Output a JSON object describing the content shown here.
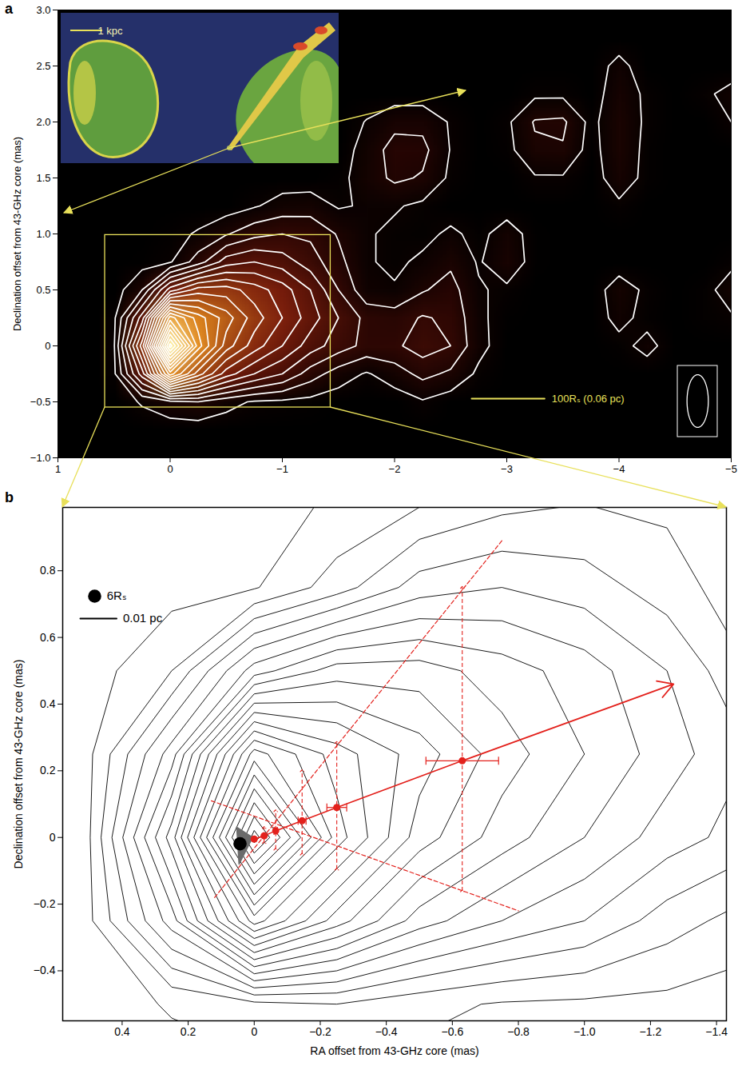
{
  "chart_data": [
    {
      "type": "contour",
      "panel_label": "a",
      "ylabel": "Declination offset from 43-GHz core (mas)",
      "xlim": [
        1,
        -5
      ],
      "ylim": [
        -1,
        3
      ],
      "xticks": [
        1,
        0,
        {
          "value": -1,
          "label": "−1"
        },
        {
          "value": -2,
          "label": "−2"
        },
        {
          "value": -3,
          "label": "−3"
        },
        {
          "value": -4,
          "label": "−4"
        },
        {
          "value": -5,
          "label": "−5"
        }
      ],
      "yticks": [
        {
          "value": -1,
          "label": "−1.0"
        },
        {
          "value": -0.5,
          "label": "−0.5"
        },
        0,
        0.5,
        {
          "value": 1,
          "label": "1.0"
        },
        1.5,
        {
          "value": 2,
          "label": "2.0"
        },
        2.5,
        {
          "value": 3,
          "label": "3.0"
        }
      ],
      "color": "#ffffff",
      "inset": {
        "label": "1 kpc"
      },
      "scale_bar": {
        "label": "100Rₛ (0.06 pc)",
        "length": 0.65
      },
      "beam": {
        "major": 0.47,
        "minor": 0.19
      }
    },
    {
      "type": "contour",
      "panel_label": "b",
      "xlabel": "RA offset from 43-GHz core (mas)",
      "ylabel": "Declination offset from 43-GHz core (mas)",
      "xlim": [
        0.58,
        -1.43
      ],
      "ylim": [
        -0.55,
        0.99
      ],
      "xticks": [
        0.4,
        0.2,
        0,
        {
          "value": -0.2,
          "label": "−0.2"
        },
        {
          "value": -0.4,
          "label": "−0.4"
        },
        {
          "value": -0.6,
          "label": "−0.6"
        },
        {
          "value": -0.8,
          "label": "−0.8"
        },
        {
          "value": -1,
          "label": "−1.0"
        },
        {
          "value": -1.2,
          "label": "−1.2"
        },
        {
          "value": -1.4,
          "label": "−1.4"
        }
      ],
      "yticks": [
        {
          "value": -0.4,
          "label": "−0.4"
        },
        {
          "value": -0.2,
          "label": "−0.2"
        },
        0,
        0.2,
        0.4,
        0.6,
        0.8
      ],
      "color": "#000000",
      "legend": "upper left",
      "legend_items": [
        {
          "label": "6Rₛ",
          "marker": "circle"
        },
        {
          "label": "0.01 pc",
          "marker": "line",
          "length": 0.11
        }
      ],
      "jet_axis": {
        "color": "#e3211c",
        "x": [
          0,
          -0.03,
          -0.065,
          -0.145,
          -0.25,
          -0.63
        ],
        "y": [
          -0.005,
          0.005,
          0.02,
          0.05,
          0.09,
          0.23
        ],
        "x_err": [
          0,
          0,
          0.005,
          0.012,
          0.03,
          0.11
        ],
        "arrow_to": {
          "x": -1.27,
          "y": 0.46
        }
      },
      "jet_width": {
        "color": "#e3211c",
        "line_style": "dashed",
        "x": [
          -0.03,
          -0.065,
          -0.145,
          -0.25,
          -0.63
        ],
        "top": [
          0.03,
          0.08,
          0.2,
          0.285,
          0.75
        ],
        "bottom": [
          -0.015,
          -0.035,
          -0.05,
          -0.095,
          -0.16
        ]
      },
      "envelope": [
        {
          "color": "#e3211c",
          "line_style": "dashed",
          "x": [
            0.12,
            -0.75
          ],
          "y": [
            -0.18,
            0.89
          ]
        },
        {
          "color": "#e3211c",
          "line_style": "dashed",
          "x": [
            0.13,
            -0.8
          ],
          "y": [
            0.11,
            -0.22
          ]
        }
      ],
      "black_hole": {
        "x": 0.043,
        "y": -0.019,
        "diameter": 0.04,
        "color": "#000000",
        "wedge": {
          "color": "#6b6b6b",
          "x": [
            0.053,
            0.005,
            0.046
          ],
          "y": [
            0.031,
            0.0,
            -0.08
          ]
        }
      }
    }
  ],
  "image": {
    "x_edges": [
      0.625,
      -5.125
    ],
    "y_edges": [
      2.875,
      -0.875
    ],
    "levels": [
      0.5,
      1.5,
      2.5,
      3.5,
      4.5,
      5.5,
      6.5,
      7.5,
      8.5,
      9.5,
      10.5,
      11.5,
      12.5,
      13.5,
      14.5,
      15.5,
      16.5,
      17.5,
      18.5,
      19.5,
      20.5
    ],
    "values": [
      [
        0,
        0,
        0,
        0,
        0,
        0,
        0,
        0,
        0,
        0,
        0,
        0,
        0,
        0,
        0,
        0,
        0,
        0,
        0,
        0,
        0,
        0,
        0
      ],
      [
        0,
        0,
        0,
        0,
        0,
        0,
        0,
        0,
        0,
        0,
        0,
        0,
        0,
        0,
        0,
        0,
        0,
        0,
        0.8,
        0,
        0,
        0,
        0
      ],
      [
        0,
        0,
        0,
        0,
        0,
        0,
        0,
        0,
        0,
        0,
        0,
        0,
        0,
        0,
        0,
        0.3,
        0.3,
        0,
        1.1,
        0.3,
        0,
        0.3,
        0.8
      ],
      [
        0,
        0,
        0,
        0,
        0,
        0,
        0,
        0,
        0,
        0.55,
        1.2,
        1.2,
        0.4,
        0,
        0.3,
        1.6,
        1.7,
        0.2,
        1.3,
        0.3,
        0,
        0,
        0.5
      ],
      [
        0,
        0,
        0,
        0,
        0,
        0,
        0,
        0,
        0,
        0.9,
        1.9,
        1.8,
        0.45,
        0,
        0.2,
        1.3,
        1.4,
        0.1,
        1.3,
        0.2,
        0,
        0,
        0
      ],
      [
        0,
        0,
        0,
        0,
        0,
        0,
        0,
        0,
        0.2,
        1.0,
        1.7,
        1.4,
        0.3,
        0,
        0,
        0.4,
        0.4,
        0,
        1.1,
        0.2,
        0,
        0,
        0
      ],
      [
        0,
        0,
        0,
        0,
        0,
        0.4,
        0.9,
        1.0,
        0.4,
        0.6,
        0.6,
        0.3,
        0,
        0,
        0,
        0,
        0,
        0,
        0.3,
        0,
        0,
        0,
        0
      ],
      [
        0,
        0,
        0.2,
        0.6,
        1.4,
        2.2,
        2.5,
        2.3,
        1.4,
        0.6,
        0.3,
        0.2,
        0.7,
        0.2,
        1.0,
        0.1,
        0,
        0,
        0,
        0,
        0,
        0,
        0
      ],
      [
        0,
        0.1,
        0.4,
        2.0,
        4,
        4.5,
        4,
        3,
        1.8,
        0.6,
        0.3,
        0.7,
        1.3,
        0.4,
        1.2,
        0.1,
        0,
        0,
        0,
        0,
        0,
        0,
        0.3
      ],
      [
        0,
        1.5,
        6,
        8,
        8,
        7,
        6,
        4.5,
        2.5,
        0.8,
        0.6,
        1.4,
        1.9,
        0.6,
        0.3,
        0,
        0,
        0,
        1.0,
        0.3,
        0,
        0.2,
        0.9
      ],
      [
        0.3,
        5,
        15,
        12,
        10,
        8,
        6.5,
        5,
        3.5,
        2.2,
        2.0,
        2.6,
        2.3,
        0.7,
        0.1,
        0,
        0,
        0,
        0.8,
        0.2,
        0,
        0.2,
        0.4
      ],
      [
        0.4,
        8,
        21,
        13,
        9,
        7,
        5.5,
        4,
        3,
        2.2,
        2.3,
        3.0,
        2.5,
        0.8,
        0,
        0,
        0,
        0,
        0.2,
        0.8,
        0,
        0,
        0
      ],
      [
        0.3,
        5,
        13,
        9,
        6,
        4.5,
        3.5,
        2,
        1,
        0.4,
        1.0,
        1.8,
        1.3,
        0.3,
        0,
        0,
        0,
        0,
        0,
        0,
        0,
        0,
        0
      ],
      [
        0,
        0.6,
        1.2,
        1.5,
        0.8,
        0.4,
        0.3,
        0.2,
        0,
        0,
        0,
        0.4,
        0,
        0,
        0,
        0,
        0,
        0,
        0,
        0,
        0,
        0,
        0
      ],
      [
        0,
        0,
        0,
        0,
        0,
        0,
        0,
        0,
        0,
        0,
        0,
        0,
        0,
        0,
        0,
        0,
        0,
        0,
        0,
        0,
        0,
        0,
        0
      ]
    ]
  }
}
